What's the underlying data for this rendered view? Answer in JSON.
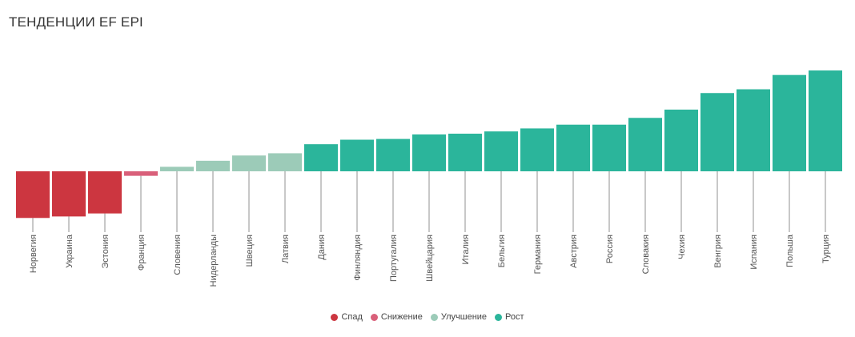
{
  "header": {
    "title": "ТЕНДЕНЦИИ EF EPI"
  },
  "colors": {
    "Спад": "#cc3640",
    "Снижение": "#d9607a",
    "Улучшение": "#9ccbb8",
    "Рост": "#2bb59b"
  },
  "chart_data": {
    "type": "bar",
    "title": "ТЕНДЕНЦИИ EF EPI",
    "xlabel": "",
    "ylabel": "",
    "ylim": [
      -3.35,
      7.0
    ],
    "grid": false,
    "legend_position": "bottom-center",
    "legend": [
      "Спад",
      "Снижение",
      "Улучшение",
      "Рост"
    ],
    "categories": [
      "Норвегия",
      "Украина",
      "Эстония",
      "Франция",
      "Словения",
      "Нидерланды",
      "Швеция",
      "Латвия",
      "Дания",
      "Финляндия",
      "Португалия",
      "Швейцария",
      "Италия",
      "Бельгия",
      "Германия",
      "Австрия",
      "Россия",
      "Словакия",
      "Чехия",
      "Венгрия",
      "Испания",
      "Польша",
      "Турция"
    ],
    "values": [
      -3.1,
      -3.0,
      -2.8,
      -0.3,
      0.3,
      0.7,
      1.05,
      1.2,
      1.8,
      2.1,
      2.15,
      2.45,
      2.5,
      2.65,
      2.85,
      3.1,
      3.1,
      3.55,
      4.1,
      5.2,
      5.45,
      6.4,
      6.7
    ],
    "groups": [
      "Спад",
      "Спад",
      "Спад",
      "Снижение",
      "Улучшение",
      "Улучшение",
      "Улучшение",
      "Улучшение",
      "Рост",
      "Рост",
      "Рост",
      "Рост",
      "Рост",
      "Рост",
      "Рост",
      "Рост",
      "Рост",
      "Рост",
      "Рост",
      "Рост",
      "Рост",
      "Рост",
      "Рост"
    ]
  }
}
